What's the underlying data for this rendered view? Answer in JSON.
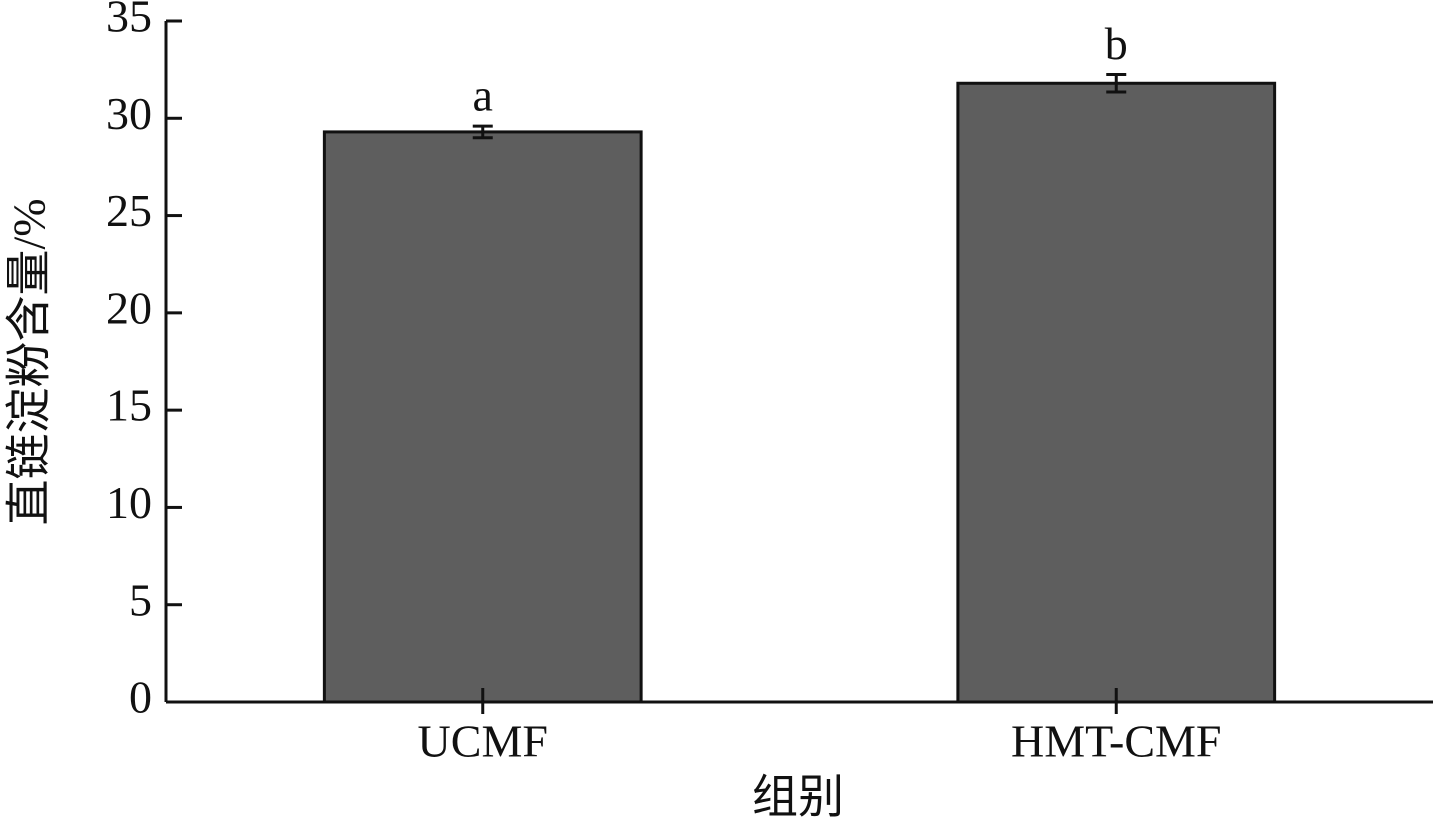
{
  "chart_data": {
    "type": "bar",
    "x_label": "组别",
    "y_label": "直链淀粉含量/%",
    "categories": [
      "UCMF",
      "HMT-CMF"
    ],
    "values": [
      29.3,
      31.8
    ],
    "errors": [
      0.3,
      0.45
    ],
    "significance": [
      "a",
      "b"
    ],
    "color": "#5e5e5e",
    "ylim": [
      0,
      35
    ],
    "yticks": [
      0,
      5,
      10,
      15,
      20,
      25,
      30,
      35
    ],
    "grid": false
  }
}
